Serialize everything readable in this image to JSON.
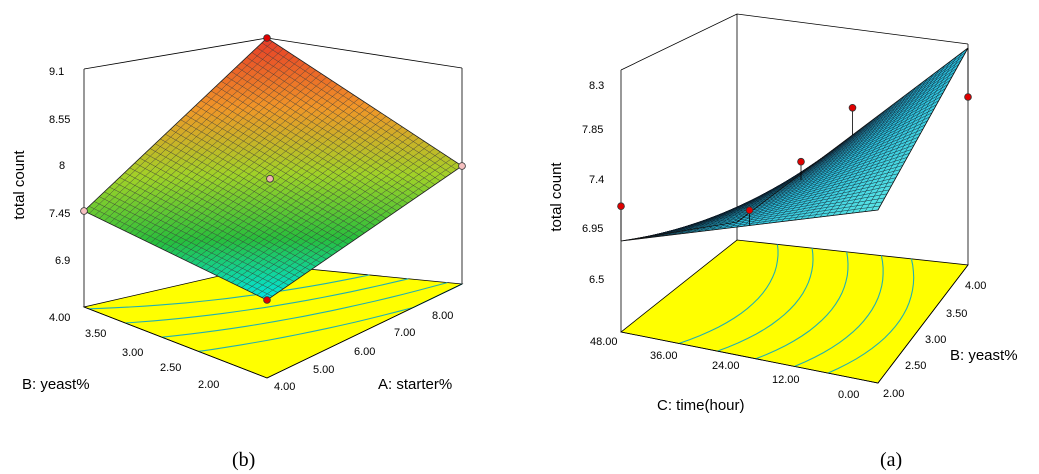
{
  "chart_data": [
    {
      "type": "surface",
      "caption": "(b)",
      "zlabel": "total count",
      "xlabel": "A: starter%",
      "ylabel": "B: yeast%",
      "x_ticks": [
        "4.00",
        "5.00",
        "6.00",
        "7.00",
        "8.00"
      ],
      "y_ticks": [
        "2.00",
        "2.50",
        "3.00",
        "3.50",
        "4.00"
      ],
      "z_ticks": [
        "6.9",
        "7.45",
        "8",
        "8.55",
        "9.1"
      ],
      "xlim": [
        4,
        8
      ],
      "ylim": [
        2,
        4
      ],
      "zlim": [
        6.35,
        9.1
      ],
      "surface_corners": {
        "x4_y2": 6.35,
        "x8_y2": 7.9,
        "x4_y4": 7.45,
        "x8_y4": 9.2
      },
      "design_points": [
        {
          "x": 4,
          "y": 2,
          "z": 6.35
        },
        {
          "x": 8,
          "y": 2,
          "z": 7.9
        },
        {
          "x": 4,
          "y": 4,
          "z": 7.45
        },
        {
          "x": 8,
          "y": 4,
          "z": 9.2
        },
        {
          "x": 6,
          "y": 3,
          "z": 7.9
        }
      ]
    },
    {
      "type": "surface",
      "caption": "(a)",
      "zlabel": "total count",
      "xlabel": "C: time(hour)",
      "ylabel": "B: yeast%",
      "x_ticks": [
        "0.00",
        "12.00",
        "24.00",
        "36.00",
        "48.00"
      ],
      "y_ticks": [
        "2.00",
        "2.50",
        "3.00",
        "3.50",
        "4.00"
      ],
      "z_ticks": [
        "6.5",
        "6.95",
        "7.4",
        "7.85",
        "8.3"
      ],
      "xlim": [
        0,
        48
      ],
      "ylim": [
        2,
        4
      ],
      "zlim": [
        6.5,
        8.3
      ],
      "surface_corners": {
        "t48_y2": 6.88,
        "t0_y2": 7.04,
        "t48_y4": 7.1,
        "t0_y4": 8.3
      },
      "design_points": [
        {
          "x": 48,
          "y": 2,
          "z": 7.2
        },
        {
          "x": 24,
          "y": 2,
          "z": 7.1
        },
        {
          "x": 24,
          "y": 3,
          "z": 7.5
        },
        {
          "x": 24,
          "y": 4,
          "z": 7.95
        },
        {
          "x": 0,
          "y": 4,
          "z": 7.85
        }
      ]
    }
  ]
}
